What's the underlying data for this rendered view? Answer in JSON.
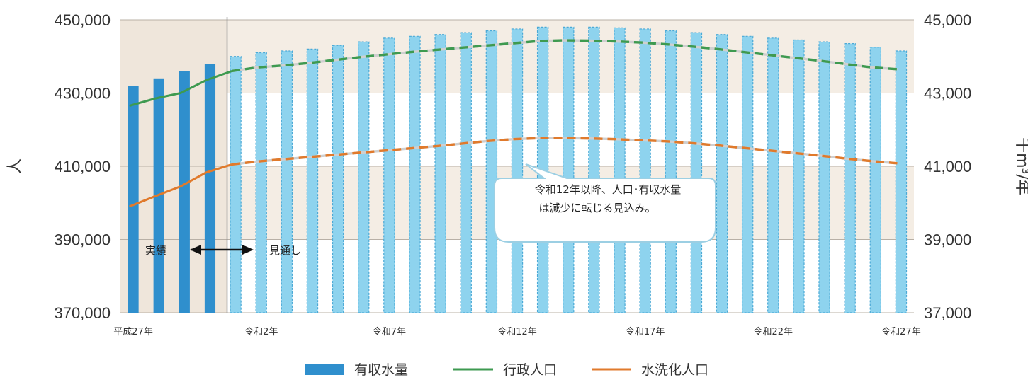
{
  "chart_data": {
    "type": "bar",
    "categories": [
      "平成27年",
      "",
      "",
      "",
      "",
      "令和2年",
      "",
      "",
      "",
      "",
      "令和7年",
      "",
      "",
      "",
      "",
      "令和12年",
      "",
      "",
      "",
      "",
      "令和17年",
      "",
      "",
      "",
      "",
      "令和22年",
      "",
      "",
      "",
      "",
      "令和27年"
    ],
    "y_left": {
      "ylim": [
        370000,
        450000
      ],
      "ticks": [
        "370,000",
        "390,000",
        "410,000",
        "430,000",
        "450,000"
      ],
      "label": "人"
    },
    "y_right": {
      "ylim": [
        37000,
        45000
      ],
      "ticks": [
        "37,000",
        "39,000",
        "41,000",
        "43,000",
        "45,000"
      ],
      "label": "千m³/年"
    },
    "actual_count": 4,
    "series": [
      {
        "name": "有収水量",
        "axis": "right",
        "values": [
          43200,
          43400,
          43600,
          43800,
          44000,
          44100,
          44150,
          44200,
          44300,
          44400,
          44500,
          44550,
          44600,
          44650,
          44700,
          44750,
          44800,
          44800,
          44800,
          44780,
          44750,
          44700,
          44650,
          44600,
          44550,
          44500,
          44450,
          44400,
          44350,
          44250,
          44150
        ]
      },
      {
        "name": "行政人口",
        "axis": "left",
        "values": [
          426500,
          428500,
          430000,
          433500,
          436000,
          437000,
          437500,
          438200,
          439000,
          439800,
          440500,
          441200,
          441800,
          442400,
          443000,
          443600,
          444200,
          444400,
          444300,
          444100,
          443800,
          443300,
          442700,
          442000,
          441200,
          440400,
          439600,
          438800,
          437900,
          437000,
          436500
        ]
      },
      {
        "name": "水洗化人口",
        "axis": "left",
        "values": [
          399000,
          401800,
          404500,
          408300,
          410500,
          411300,
          411900,
          412500,
          413100,
          413700,
          414300,
          414900,
          415500,
          416200,
          416900,
          417400,
          417700,
          417700,
          417600,
          417400,
          417100,
          416800,
          416300,
          415700,
          415000,
          414300,
          413600,
          412900,
          412100,
          411400,
          410800
        ]
      }
    ],
    "colors": {
      "actual_bar": "#2f8fcd",
      "forecast_bar": "#8ed3ee",
      "admin_line": "#3e9a50",
      "sewer_line": "#e07a2c",
      "bg_actual": "#efe6db",
      "bg_band": "#f4ede4"
    },
    "annotation": {
      "line1": "令和12年以降、人口･有収水量",
      "line2": "は減少に転じる見込み。"
    },
    "phase_labels": {
      "actual": "実績",
      "forecast": "見通し"
    },
    "legend_placement": "bottom"
  }
}
